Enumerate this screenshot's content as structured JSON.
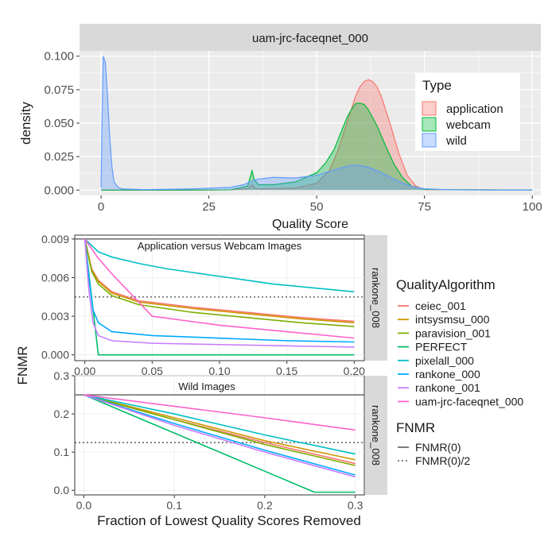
{
  "chart_data": [
    {
      "type": "area",
      "strip_title": "uam-jrc-faceqnet_000",
      "xlabel": "Quality Score",
      "ylabel": "density",
      "xlim": [
        -5,
        102
      ],
      "ylim": [
        -0.004,
        0.104
      ],
      "xticks": [
        0,
        25,
        50,
        75,
        100
      ],
      "xtick_labels": [
        "0",
        "25",
        "50",
        "75",
        "100"
      ],
      "yticks": [
        0,
        0.025,
        0.05,
        0.075,
        0.1
      ],
      "ytick_labels": [
        "0.000",
        "0.025",
        "0.050",
        "0.075",
        "0.100"
      ],
      "grid": true,
      "legend": {
        "title": "Type",
        "placement": "right"
      },
      "series": [
        {
          "name": "application",
          "color": "#F8766D",
          "fill": "#F8766D",
          "x": [
            0,
            10,
            20,
            30,
            34,
            35,
            35.5,
            36,
            40,
            45,
            50,
            53,
            55,
            57,
            59,
            60,
            61,
            62,
            63,
            64,
            65,
            67,
            69,
            71,
            73,
            75,
            100
          ],
          "y": [
            0,
            0,
            0,
            0.0002,
            0.001,
            0.004,
            0.002,
            0.001,
            0.001,
            0.0015,
            0.005,
            0.015,
            0.03,
            0.05,
            0.07,
            0.077,
            0.081,
            0.0825,
            0.081,
            0.077,
            0.07,
            0.05,
            0.028,
            0.011,
            0.003,
            0.0003,
            0
          ]
        },
        {
          "name": "webcam",
          "color": "#00BA38",
          "fill": "#00BA38",
          "x": [
            0,
            10,
            20,
            30,
            34,
            35,
            35.5,
            36.5,
            40,
            45,
            50,
            52,
            54,
            56,
            57,
            58,
            59,
            60,
            61,
            62,
            64,
            66,
            68,
            70,
            72,
            75,
            100
          ],
          "y": [
            0,
            0,
            0,
            0.0002,
            0.003,
            0.0145,
            0.008,
            0.004,
            0.004,
            0.006,
            0.013,
            0.02,
            0.03,
            0.046,
            0.054,
            0.06,
            0.0645,
            0.065,
            0.064,
            0.06,
            0.048,
            0.033,
            0.019,
            0.009,
            0.003,
            0.0005,
            0
          ]
        },
        {
          "name": "wild",
          "color": "#619CFF",
          "fill": "#619CFF",
          "x": [
            0,
            0.2,
            0.5,
            1,
            1.5,
            2,
            2.5,
            3,
            4,
            5,
            10,
            20,
            30,
            33,
            36,
            40,
            45,
            50,
            55,
            58,
            60,
            62,
            65,
            68,
            70,
            73,
            75,
            80,
            90,
            100
          ],
          "y": [
            0.002,
            0.05,
            0.1,
            0.095,
            0.07,
            0.04,
            0.018,
            0.006,
            0.002,
            0.0008,
            0.0003,
            0.0008,
            0.002,
            0.004,
            0.008,
            0.0095,
            0.009,
            0.011,
            0.016,
            0.0185,
            0.0185,
            0.017,
            0.013,
            0.008,
            0.005,
            0.002,
            0.001,
            0.0003,
            0,
            0
          ]
        }
      ]
    },
    {
      "type": "line",
      "title": "Application versus Webcam Images",
      "strip_label": "rankone_008",
      "xlim": [
        -0.0075,
        0.2075
      ],
      "ylim": [
        -0.00045,
        0.0093
      ],
      "xticks": [
        0,
        0.05,
        0.1,
        0.15,
        0.2
      ],
      "xtick_labels": [
        "0.00",
        "0.05",
        "0.10",
        "0.15",
        "0.20"
      ],
      "yticks": [
        0,
        0.003,
        0.006,
        0.009
      ],
      "ytick_labels": [
        "0.000",
        "0.003",
        "0.006",
        "0.009"
      ],
      "reference_lines": [
        {
          "name": "FNMR(0)",
          "y": 0.009,
          "style": "solid"
        },
        {
          "name": "FNMR(0)/2",
          "y": 0.0045,
          "style": "dotted"
        }
      ],
      "series": [
        {
          "name": "ceiec_001",
          "x": [
            0,
            0.005,
            0.01,
            0.02,
            0.04,
            0.08,
            0.12,
            0.16,
            0.2
          ],
          "y": [
            0.009,
            0.0067,
            0.0058,
            0.0049,
            0.0042,
            0.0037,
            0.0033,
            0.0029,
            0.0026
          ]
        },
        {
          "name": "intsysmsu_000",
          "x": [
            0,
            0.005,
            0.01,
            0.02,
            0.04,
            0.08,
            0.12,
            0.16,
            0.2
          ],
          "y": [
            0.009,
            0.0066,
            0.0057,
            0.0048,
            0.0041,
            0.0036,
            0.0032,
            0.0028,
            0.0025
          ]
        },
        {
          "name": "paravision_001",
          "x": [
            0,
            0.005,
            0.01,
            0.02,
            0.04,
            0.08,
            0.12,
            0.16,
            0.2
          ],
          "y": [
            0.009,
            0.0065,
            0.0055,
            0.0046,
            0.0039,
            0.0033,
            0.0029,
            0.0025,
            0.0022
          ]
        },
        {
          "name": "PERFECT",
          "x": [
            0,
            0.005,
            0.01,
            0.2
          ],
          "y": [
            0.009,
            0.0045,
            0,
            0
          ]
        },
        {
          "name": "pixelall_000",
          "x": [
            0,
            0.01,
            0.02,
            0.04,
            0.06,
            0.08,
            0.1,
            0.12,
            0.14,
            0.16,
            0.18,
            0.2
          ],
          "y": [
            0.009,
            0.008,
            0.0076,
            0.0071,
            0.0067,
            0.0064,
            0.0061,
            0.0058,
            0.0055,
            0.0053,
            0.0051,
            0.0049
          ]
        },
        {
          "name": "rankone_000",
          "x": [
            0,
            0.003,
            0.006,
            0.01,
            0.02,
            0.05,
            0.1,
            0.15,
            0.2
          ],
          "y": [
            0.009,
            0.006,
            0.0035,
            0.0025,
            0.0018,
            0.0015,
            0.0013,
            0.0011,
            0.001
          ]
        },
        {
          "name": "rankone_001",
          "x": [
            0,
            0.003,
            0.006,
            0.01,
            0.02,
            0.05,
            0.1,
            0.15,
            0.2
          ],
          "y": [
            0.009,
            0.005,
            0.0025,
            0.0015,
            0.0011,
            0.0009,
            0.0008,
            0.0007,
            0.0006
          ]
        },
        {
          "name": "uam-jrc-faceqnet_000",
          "x": [
            0,
            0.01,
            0.02,
            0.03,
            0.04,
            0.05,
            0.1,
            0.15,
            0.2
          ],
          "y": [
            0.009,
            0.0075,
            0.0063,
            0.0052,
            0.0041,
            0.003,
            0.0023,
            0.0018,
            0.0013
          ]
        }
      ]
    },
    {
      "type": "line",
      "title": "Wild Images",
      "strip_label": "rankone_008",
      "xlabel": "Fraction of Lowest Quality Scores Removed",
      "ylabel": "FNMR",
      "xlim": [
        -0.01,
        0.31
      ],
      "ylim": [
        -0.012,
        0.3
      ],
      "xticks": [
        0,
        0.1,
        0.2,
        0.3
      ],
      "xtick_labels": [
        "0.0",
        "0.1",
        "0.2",
        "0.3"
      ],
      "yticks": [
        0,
        0.1,
        0.2,
        0.3
      ],
      "ytick_labels": [
        "0.0",
        "0.1",
        "0.2",
        "0.3"
      ],
      "reference_lines": [
        {
          "name": "FNMR(0)",
          "y": 0.25,
          "style": "solid"
        },
        {
          "name": "FNMR(0)/2",
          "y": 0.125,
          "style": "dotted"
        }
      ],
      "series": [
        {
          "name": "ceiec_001",
          "x": [
            0,
            0.1,
            0.2,
            0.3
          ],
          "y": [
            0.25,
            0.185,
            0.125,
            0.07
          ]
        },
        {
          "name": "intsysmsu_000",
          "x": [
            0,
            0.1,
            0.2,
            0.3
          ],
          "y": [
            0.25,
            0.19,
            0.13,
            0.08
          ]
        },
        {
          "name": "paravision_001",
          "x": [
            0,
            0.1,
            0.2,
            0.3
          ],
          "y": [
            0.25,
            0.185,
            0.12,
            0.065
          ]
        },
        {
          "name": "PERFECT",
          "x": [
            0,
            0.05,
            0.1,
            0.15,
            0.2,
            0.25,
            0.255,
            0.3
          ],
          "y": [
            0.25,
            0.2,
            0.15,
            0.1,
            0.05,
            0,
            -0.005,
            -0.005
          ]
        },
        {
          "name": "pixelall_000",
          "x": [
            0,
            0.1,
            0.2,
            0.3
          ],
          "y": [
            0.25,
            0.2,
            0.145,
            0.095
          ]
        },
        {
          "name": "rankone_000",
          "x": [
            0,
            0.1,
            0.2,
            0.3
          ],
          "y": [
            0.25,
            0.175,
            0.105,
            0.04
          ]
        },
        {
          "name": "rankone_001",
          "x": [
            0,
            0.1,
            0.2,
            0.3
          ],
          "y": [
            0.25,
            0.17,
            0.1,
            0.035
          ]
        },
        {
          "name": "uam-jrc-faceqnet_000",
          "x": [
            0,
            0.1,
            0.2,
            0.3
          ],
          "y": [
            0.25,
            0.22,
            0.19,
            0.158
          ]
        }
      ]
    }
  ],
  "legends": {
    "quality_algorithm": {
      "title": "QualityAlgorithm",
      "items": [
        {
          "name": "ceiec_001",
          "color": "#F8766D"
        },
        {
          "name": "intsysmsu_000",
          "color": "#CD9600"
        },
        {
          "name": "paravision_001",
          "color": "#7CAE00"
        },
        {
          "name": "PERFECT",
          "color": "#00BE67"
        },
        {
          "name": "pixelall_000",
          "color": "#00BFC4"
        },
        {
          "name": "rankone_000",
          "color": "#00A9FF"
        },
        {
          "name": "rankone_001",
          "color": "#C77CFF"
        },
        {
          "name": "uam-jrc-faceqnet_000",
          "color": "#FF61CC"
        }
      ]
    },
    "fnmr": {
      "title": "FNMR",
      "items": [
        {
          "name": "FNMR(0)",
          "style": "solid"
        },
        {
          "name": "FNMR(0)/2",
          "style": "dotted"
        }
      ]
    }
  }
}
